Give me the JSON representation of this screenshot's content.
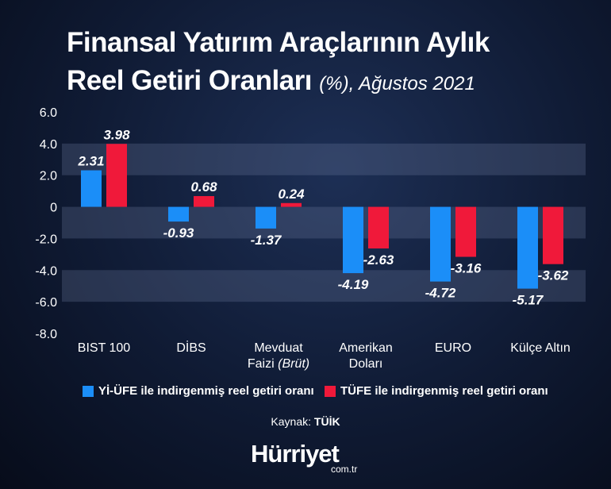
{
  "title": {
    "line1": "Finansal Yatırım Araçlarının Aylık",
    "line2_main": "Reel Getiri Oranları",
    "line2_sub": "(%), Ağustos 2021"
  },
  "colors": {
    "yi_ufe": "#1b8ef8",
    "tufe": "#f0193a"
  },
  "chart_data": {
    "type": "bar",
    "categories": [
      [
        "BIST 100"
      ],
      [
        "DİBS"
      ],
      [
        "Mevduat",
        "Faizi (Brüt)"
      ],
      [
        "Amerikan",
        "Doları"
      ],
      [
        "EURO"
      ],
      [
        "Külçe Altın"
      ]
    ],
    "series": [
      {
        "name": "Yİ-ÜFE ile indirgenmiş reel getiri oranı",
        "values": [
          2.31,
          -0.93,
          -1.37,
          -4.19,
          -4.72,
          -5.17
        ],
        "labels": [
          "2.31",
          "-0.93",
          "-1.37",
          "-4.19",
          "-4.72",
          "-5.17"
        ]
      },
      {
        "name": "TÜFE ile indirgenmiş reel getiri oranı",
        "values": [
          3.98,
          0.68,
          0.24,
          -2.63,
          -3.16,
          -3.62
        ],
        "labels": [
          "3.98",
          "0.68",
          "0.24",
          "-2.63",
          "-3.16",
          "-3.62"
        ]
      }
    ],
    "yticks": [
      "6.0",
      "4.0",
      "2.0",
      "0",
      "-2.0",
      "-4.0",
      "-6.0",
      "-8.0"
    ],
    "ylim": [
      -8,
      6
    ],
    "legend": "bottom"
  },
  "source": {
    "label": "Kaynak:",
    "value": "TÜİK"
  },
  "logo": {
    "name": "Hürriyet",
    "domain": "com.tr"
  }
}
